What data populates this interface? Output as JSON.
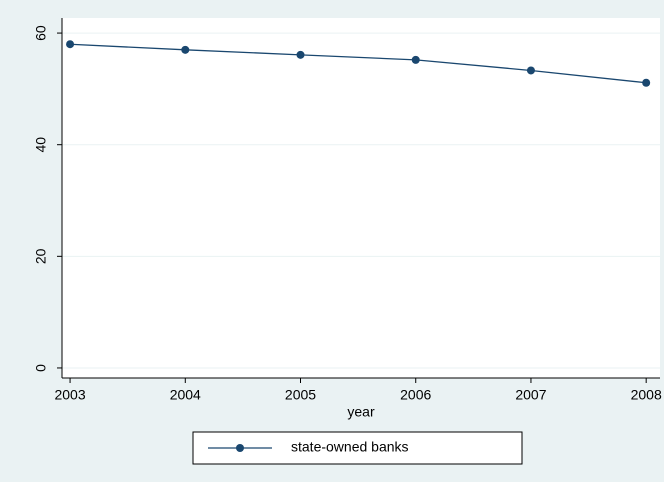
{
  "chart_data": {
    "type": "line",
    "x": [
      2003,
      2004,
      2005,
      2006,
      2007,
      2008
    ],
    "series": [
      {
        "name": "state-owned banks",
        "color": "#1a476f",
        "values": [
          58,
          57,
          56.1,
          55.2,
          53.3,
          51.1
        ]
      }
    ],
    "xlim": [
      2002.93,
      2008.12
    ],
    "xticks": [
      2003,
      2004,
      2005,
      2006,
      2007,
      2008
    ],
    "ylim": [
      -1.8,
      62.7
    ],
    "yticks": [
      0,
      20,
      40,
      60
    ],
    "xlabel": "year",
    "grid": true,
    "legend": "bottom"
  }
}
